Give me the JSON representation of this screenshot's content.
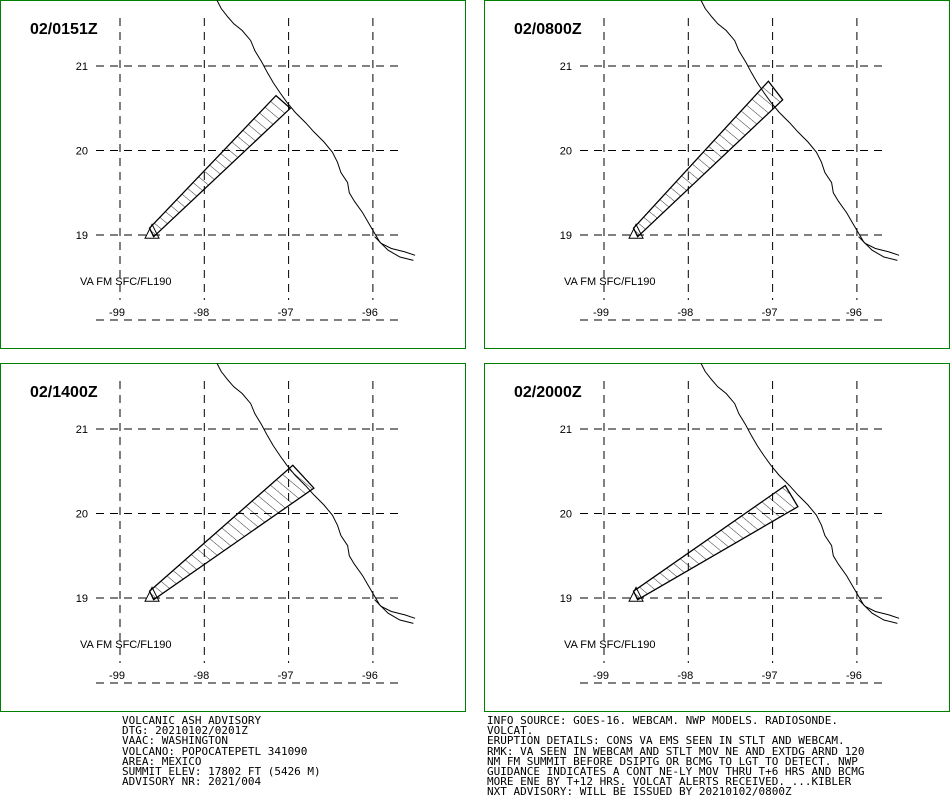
{
  "colors": {
    "panel_border": "#008000",
    "ink": "#000000",
    "background": "#ffffff"
  },
  "map": {
    "lon_labels": [
      "-99",
      "-98",
      "-97",
      "-96"
    ],
    "lat_labels": [
      "21",
      "20",
      "19"
    ],
    "layer_label": "VA FM SFC/FL190",
    "volcano_marker": "triangle-icon"
  },
  "panels": [
    {
      "title": "02/0151Z",
      "ash_polygon": [
        [
          -98.65,
          19.08
        ],
        [
          -97.15,
          20.65
        ],
        [
          -96.98,
          20.5
        ],
        [
          -98.6,
          18.98
        ]
      ]
    },
    {
      "title": "02/0800Z",
      "ash_polygon": [
        [
          -98.65,
          19.08
        ],
        [
          -97.05,
          20.82
        ],
        [
          -96.88,
          20.6
        ],
        [
          -98.6,
          18.98
        ]
      ]
    },
    {
      "title": "02/1400Z",
      "ash_polygon": [
        [
          -98.65,
          19.08
        ],
        [
          -96.95,
          20.57
        ],
        [
          -96.7,
          20.3
        ],
        [
          -98.6,
          18.98
        ]
      ]
    },
    {
      "title": "02/2000Z",
      "ash_polygon": [
        [
          -98.65,
          19.08
        ],
        [
          -96.85,
          20.33
        ],
        [
          -96.7,
          20.08
        ],
        [
          -98.6,
          18.98
        ]
      ]
    }
  ],
  "advisory_left": {
    "lines": [
      "VOLCANIC ASH ADVISORY",
      "DTG: 20210102/0201Z",
      "VAAC: WASHINGTON",
      "VOLCANO: POPOCATEPETL 341090",
      "AREA: MEXICO",
      "SUMMIT ELEV: 17802 FT (5426 M)",
      "ADVISORY NR: 2021/004"
    ]
  },
  "advisory_right": {
    "lines": [
      "INFO SOURCE: GOES-16. WEBCAM. NWP MODELS. RADIOSONDE.",
      "VOLCAT.",
      "ERUPTION DETAILS: CONS VA EMS SEEN IN STLT AND WEBCAM.",
      "RMK: VA SEEN IN WEBCAM AND STLT MOV NE AND EXTDG ARND 120",
      "NM FM SUMMIT BEFORE DSIPTG OR BCMG TO LGT TO DETECT. NWP",
      "GUIDANCE INDICATES A CONT NE-LY MOV THRU T+6 HRS AND BCMG",
      "MORE ENE BY T+12 HRS. VOLCAT ALERTS RECEIVED. ...KIBLER",
      "NXT ADVISORY: WILL BE ISSUED BY 20210102/0800Z"
    ]
  }
}
